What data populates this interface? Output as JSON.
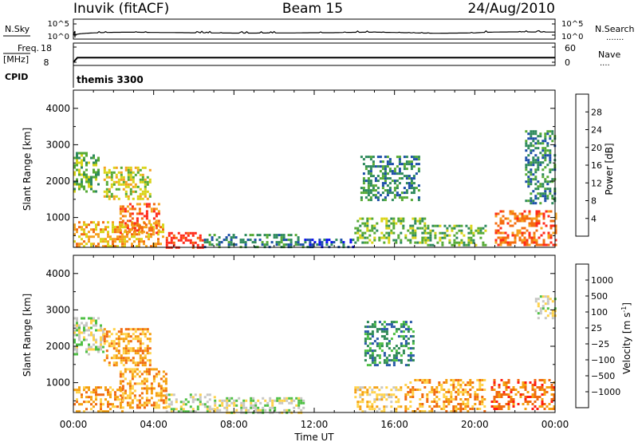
{
  "header": {
    "station": "Inuvik (fitACF)",
    "beam": "Beam 15",
    "date": "24/Aug/2010"
  },
  "noise_panel": {
    "left_label": "N.Sky",
    "right_label": "N.Search",
    "left_ticks": [
      "10^5",
      "10^0"
    ],
    "right_ticks": [
      "10^5",
      "10^0"
    ]
  },
  "freq_panel": {
    "left_label_1": "Freq.",
    "left_label_2": "[MHz]",
    "right_label": "Nave",
    "left_ticks": [
      "18",
      "8"
    ],
    "right_ticks": [
      "60",
      "0"
    ]
  },
  "cpid": {
    "label": "CPID",
    "program": "themis 3300"
  },
  "power_colorbar": {
    "label": "Power [dB]",
    "ticks": [
      "28",
      "24",
      "20",
      "16",
      "12",
      "8",
      "4"
    ],
    "colors": [
      "#0a10f0",
      "#1c4ea8",
      "#2e8a5c",
      "#55aa35",
      "#d9d418",
      "#f5a21e",
      "#f46c10",
      "#ff2a1a"
    ]
  },
  "velocity_colorbar": {
    "label_main": "Velocity  [m s",
    "label_sup": "-1",
    "label_end": "]",
    "ticks": [
      "1000",
      "500",
      "100",
      "25",
      "−25",
      "−100",
      "−500",
      "−1000"
    ],
    "colors": [
      "#1f2bb0",
      "#2a5aa8",
      "#2f8a55",
      "#4fc045",
      "#c7c7c4",
      "#ffd24a",
      "#f5a010",
      "#f06a10",
      "#ff1a10"
    ]
  },
  "chart_data": [
    {
      "type": "line",
      "title": "",
      "series": [
        {
          "name": "N.Sky",
          "x": [
            0,
            1,
            2,
            3,
            4,
            5,
            6,
            7,
            8,
            9,
            10,
            11,
            12,
            13,
            14,
            15,
            16,
            17,
            18,
            19,
            20,
            21,
            22,
            23,
            24
          ],
          "values": [
            1,
            30,
            60,
            70,
            50,
            45,
            35,
            30,
            25,
            25,
            30,
            30,
            40,
            40,
            60,
            70,
            50,
            30,
            20,
            25,
            30,
            80,
            100,
            90,
            80
          ]
        }
      ],
      "xlim": [
        0,
        24
      ],
      "ylim_exp": [
        0,
        5
      ],
      "ylog": true
    },
    {
      "type": "line",
      "title": "",
      "series": [
        {
          "name": "Freq.",
          "x": [
            0,
            0.2,
            24
          ],
          "values": [
            8,
            11,
            11
          ]
        }
      ],
      "xlim": [
        0,
        24
      ],
      "ylim": [
        8,
        18
      ]
    },
    {
      "type": "heatmap",
      "title": "",
      "ylabel": "Slant Range [km]",
      "xlim": [
        0,
        24
      ],
      "ylim": [
        180,
        4500
      ],
      "yticks": [
        1000,
        2000,
        3000,
        4000
      ],
      "colorbar_label": "Power [dB]",
      "regions": [
        {
          "t0": 0.0,
          "t1": 4.5,
          "r0": 200,
          "r1": 900,
          "level": 5
        },
        {
          "t0": 2.3,
          "t1": 4.3,
          "r0": 600,
          "r1": 1400,
          "level": 6
        },
        {
          "t0": 4.6,
          "t1": 6.5,
          "r0": 200,
          "r1": 600,
          "level": 7
        },
        {
          "t0": 0.0,
          "t1": 1.2,
          "r0": 1700,
          "r1": 2800,
          "level": 3
        },
        {
          "t0": 1.5,
          "t1": 3.8,
          "r0": 1500,
          "r1": 2400,
          "level": 4
        },
        {
          "t0": 6.5,
          "t1": 11.5,
          "r0": 200,
          "r1": 550,
          "level": 2
        },
        {
          "t0": 11.5,
          "t1": 14.0,
          "r0": 200,
          "r1": 420,
          "level": 1
        },
        {
          "t0": 14.0,
          "t1": 17.5,
          "r0": 300,
          "r1": 1000,
          "level": 3
        },
        {
          "t0": 14.3,
          "t1": 17.2,
          "r0": 1500,
          "r1": 2700,
          "level": 2
        },
        {
          "t0": 17.5,
          "t1": 20.5,
          "r0": 250,
          "r1": 800,
          "level": 3
        },
        {
          "t0": 21.0,
          "t1": 24.0,
          "r0": 250,
          "r1": 1200,
          "level": 6
        },
        {
          "t0": 22.5,
          "t1": 24.0,
          "r0": 1400,
          "r1": 3400,
          "level": 2
        }
      ]
    },
    {
      "type": "heatmap",
      "title": "",
      "xlabel": "Time UT",
      "ylabel": "Slant Range [km]",
      "xlim": [
        0,
        24
      ],
      "xticks": [
        "00:00",
        "04:00",
        "08:00",
        "12:00",
        "16:00",
        "20:00",
        "00:00"
      ],
      "ylim": [
        180,
        4500
      ],
      "yticks": [
        1000,
        2000,
        3000,
        4000
      ],
      "colorbar_label": "Velocity [m s-1]",
      "regions": [
        {
          "t0": 0.0,
          "t1": 2.5,
          "r0": 200,
          "r1": 900,
          "level": 6
        },
        {
          "t0": 2.3,
          "t1": 4.6,
          "r0": 300,
          "r1": 1400,
          "level": 6
        },
        {
          "t0": 4.6,
          "t1": 7.0,
          "r0": 200,
          "r1": 700,
          "level": 4
        },
        {
          "t0": 7.0,
          "t1": 11.5,
          "r0": 200,
          "r1": 600,
          "level": 4
        },
        {
          "t0": 0.0,
          "t1": 1.5,
          "r0": 1800,
          "r1": 2800,
          "level": 4
        },
        {
          "t0": 1.5,
          "t1": 3.8,
          "r0": 1500,
          "r1": 2500,
          "level": 6
        },
        {
          "t0": 14.0,
          "t1": 16.3,
          "r0": 200,
          "r1": 900,
          "level": 5
        },
        {
          "t0": 14.5,
          "t1": 17.0,
          "r0": 1500,
          "r1": 2700,
          "level": 2
        },
        {
          "t0": 16.5,
          "t1": 20.5,
          "r0": 200,
          "r1": 1100,
          "level": 6
        },
        {
          "t0": 20.8,
          "t1": 24.0,
          "r0": 250,
          "r1": 1100,
          "level": 7
        },
        {
          "t0": 23.0,
          "t1": 24.0,
          "r0": 2800,
          "r1": 3400,
          "level": 4
        }
      ]
    }
  ]
}
